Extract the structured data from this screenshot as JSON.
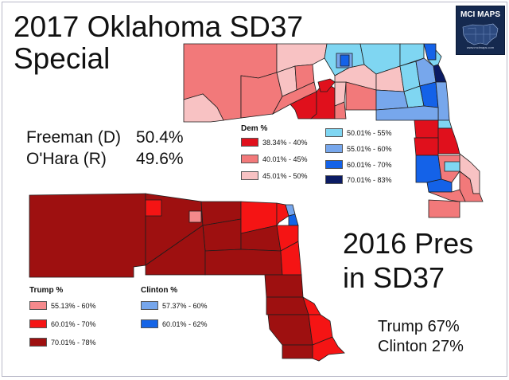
{
  "title": {
    "line1": "2017 Oklahoma SD37",
    "line2": "Special"
  },
  "results_special": [
    {
      "label": "Freeman (D)",
      "value": "50.4%"
    },
    {
      "label": "O'Hara   (R)",
      "value": "49.6%"
    }
  ],
  "dem_legend": {
    "title": "Dem %",
    "items": [
      {
        "label": "38.34% - 40%",
        "color": "#e0101c"
      },
      {
        "label": "40.01% - 45%",
        "color": "#f2797a"
      },
      {
        "label": "45.01% - 50%",
        "color": "#f8c2c3"
      },
      {
        "label": "50.01% - 55%",
        "color": "#7fd6f2"
      },
      {
        "label": "55.01% - 60%",
        "color": "#77a7ec"
      },
      {
        "label": "60.01% - 70%",
        "color": "#1462e8"
      },
      {
        "label": "70.01% - 83%",
        "color": "#0b1b63"
      }
    ]
  },
  "pres_title": {
    "line1": "2016 Pres",
    "line2": "in SD37"
  },
  "results_pres": [
    {
      "label": "Trump",
      "value": "67%"
    },
    {
      "label": "Clinton",
      "value": "27%"
    }
  ],
  "trump_legend": {
    "title": "Trump %",
    "items": [
      {
        "label": "55.13% - 60%",
        "color": "#f4898c"
      },
      {
        "label": "60.01% - 70%",
        "color": "#f51414"
      },
      {
        "label": "70.01% - 78%",
        "color": "#9e1010"
      }
    ]
  },
  "clinton_legend": {
    "title": "Clinton %",
    "items": [
      {
        "label": "57.37% - 60%",
        "color": "#76a6ec"
      },
      {
        "label": "60.01% - 62%",
        "color": "#1464e6"
      }
    ]
  },
  "logo": {
    "text": "MCI MAPS",
    "url": "www.mcimaps.com"
  }
}
